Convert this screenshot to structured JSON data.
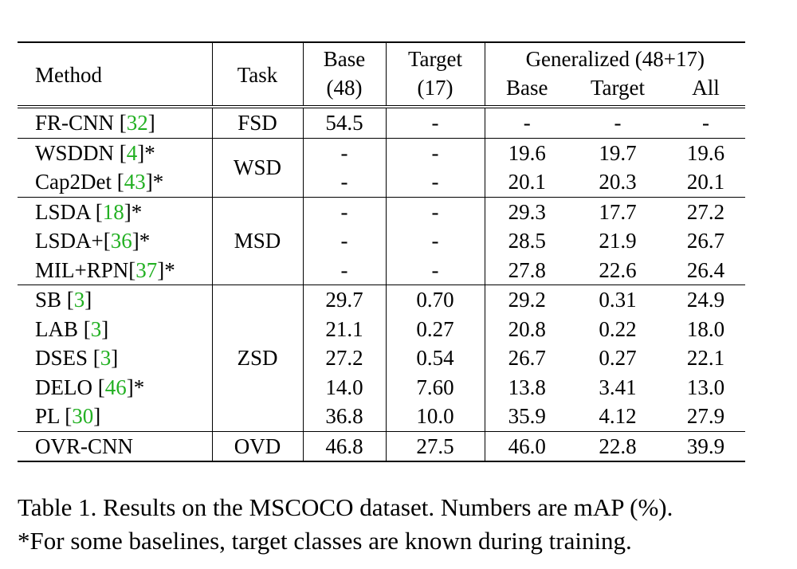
{
  "table": {
    "header": {
      "method": "Method",
      "task": "Task",
      "base_top": "Base",
      "base_bottom": "(48)",
      "target_top": "Target",
      "target_bottom": "(17)",
      "generalized": "Generalized (48+17)",
      "gen_base": "Base",
      "gen_target": "Target",
      "gen_all": "All"
    },
    "groups": [
      {
        "task": "FSD",
        "rows": [
          {
            "name": "FR-CNN ",
            "cite": "32",
            "suffix": "",
            "base": "54.5",
            "target": "-",
            "gen_base": "-",
            "gen_target": "-",
            "gen_all": "-"
          }
        ]
      },
      {
        "task": "WSD",
        "rows": [
          {
            "name": "WSDDN ",
            "cite": "4",
            "suffix": "*",
            "base": "-",
            "target": "-",
            "gen_base": "19.6",
            "gen_target": "19.7",
            "gen_all": "19.6"
          },
          {
            "name": "Cap2Det ",
            "cite": "43",
            "suffix": "*",
            "base": "-",
            "target": "-",
            "gen_base": "20.1",
            "gen_target": "20.3",
            "gen_all": "20.1"
          }
        ]
      },
      {
        "task": "MSD",
        "rows": [
          {
            "name": "LSDA ",
            "cite": "18",
            "suffix": "*",
            "base": "-",
            "target": "-",
            "gen_base": "29.3",
            "gen_target": "17.7",
            "gen_all": "27.2"
          },
          {
            "name": "LSDA+",
            "cite": "36",
            "suffix": "*",
            "base": "-",
            "target": "-",
            "gen_base": "28.5",
            "gen_target": "21.9",
            "gen_all": "26.7"
          },
          {
            "name": "MIL+RPN",
            "cite": "37",
            "suffix": "*",
            "base": "-",
            "target": "-",
            "gen_base": "27.8",
            "gen_target": "22.6",
            "gen_all": "26.4"
          }
        ]
      },
      {
        "task": "ZSD",
        "rows": [
          {
            "name": "SB ",
            "cite": "3",
            "suffix": "",
            "base": "29.7",
            "target": "0.70",
            "gen_base": "29.2",
            "gen_target": "0.31",
            "gen_all": "24.9"
          },
          {
            "name": "LAB ",
            "cite": "3",
            "suffix": "",
            "base": "21.1",
            "target": "0.27",
            "gen_base": "20.8",
            "gen_target": "0.22",
            "gen_all": "18.0"
          },
          {
            "name": "DSES ",
            "cite": "3",
            "suffix": "",
            "base": "27.2",
            "target": "0.54",
            "gen_base": "26.7",
            "gen_target": "0.27",
            "gen_all": "22.1"
          },
          {
            "name": "DELO ",
            "cite": "46",
            "suffix": "*",
            "base": "14.0",
            "target": "7.60",
            "gen_base": "13.8",
            "gen_target": "3.41",
            "gen_all": "13.0"
          },
          {
            "name": "PL ",
            "cite": "30",
            "suffix": "",
            "base": "36.8",
            "target": "10.0",
            "gen_base": "35.9",
            "gen_target": "4.12",
            "gen_all": "27.9"
          }
        ]
      },
      {
        "task": "OVD",
        "bold": true,
        "rows": [
          {
            "name": "OVR-CNN",
            "cite": "",
            "suffix": "",
            "base": "46.8",
            "target": "27.5",
            "gen_base": "46.0",
            "gen_target": "22.8",
            "gen_all": "39.9"
          }
        ]
      }
    ]
  },
  "caption": {
    "line1": "Table 1. Results on the MSCOCO dataset. Numbers are mAP (%).",
    "line2": "*For some baselines, target classes are known during training."
  },
  "colors": {
    "citation": "#22b022",
    "text": "#000000"
  }
}
